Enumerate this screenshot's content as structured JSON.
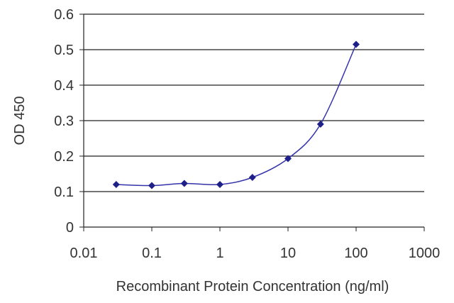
{
  "chart_data": {
    "type": "line",
    "title": "",
    "xlabel": "Recombinant Protein Concentration (ng/ml)",
    "ylabel": "OD 450",
    "x_scale": "log",
    "xlim": [
      0.01,
      1000
    ],
    "ylim": [
      0,
      0.6
    ],
    "x_ticks": [
      "0.01",
      "0.1",
      "1",
      "10",
      "100",
      "1000"
    ],
    "y_ticks": [
      "0",
      "0.1",
      "0.2",
      "0.3",
      "0.4",
      "0.5",
      "0.6"
    ],
    "grid": "horizontal",
    "legend": "none",
    "series": [
      {
        "color": "#3333aa",
        "marker": "diamond",
        "x": [
          0.03,
          0.1,
          0.3,
          1,
          3,
          10,
          30,
          100
        ],
        "y": [
          0.12,
          0.117,
          0.123,
          0.12,
          0.14,
          0.193,
          0.29,
          0.515
        ]
      }
    ]
  }
}
